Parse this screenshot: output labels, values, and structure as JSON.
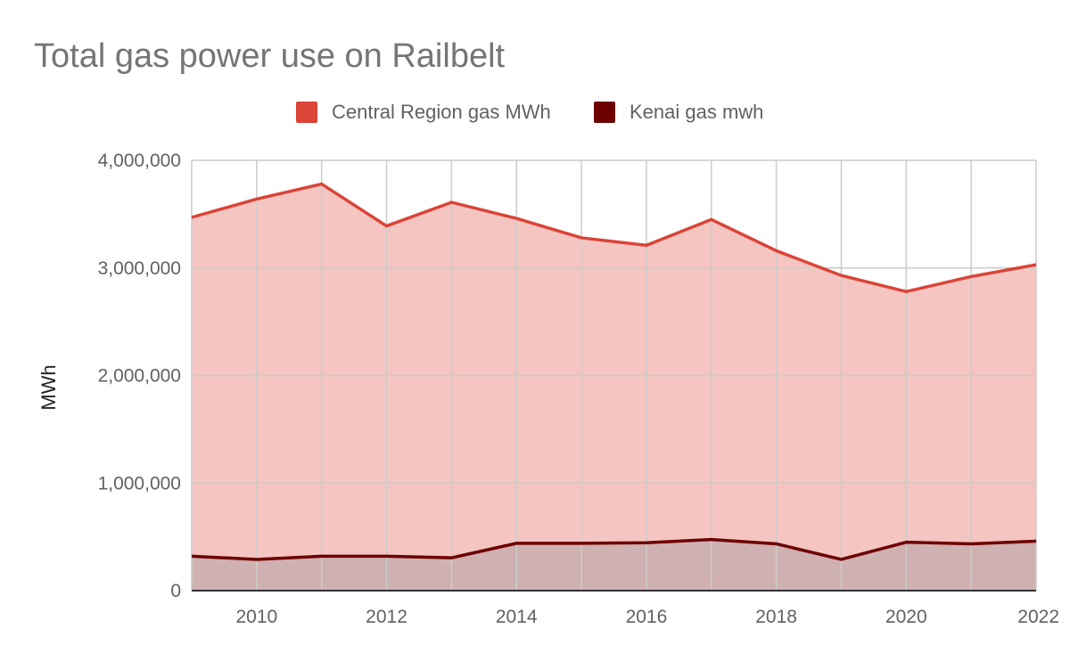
{
  "chart_data": {
    "type": "area",
    "title": "Total gas power use on Railbelt",
    "xlabel": "",
    "ylabel": "MWh",
    "x": [
      2009,
      2010,
      2011,
      2012,
      2013,
      2014,
      2015,
      2016,
      2017,
      2018,
      2019,
      2020,
      2021,
      2022
    ],
    "xlim": [
      2009,
      2022
    ],
    "xticks": [
      "2010",
      "2012",
      "2014",
      "2016",
      "2018",
      "2020",
      "2022"
    ],
    "ylim": [
      0,
      4000000
    ],
    "yticks": [
      "0",
      "1,000,000",
      "2,000,000",
      "3,000,000",
      "4,000,000"
    ],
    "grid": true,
    "legend_position": "top",
    "series": [
      {
        "name": "Central Region gas MWh",
        "line_color": "#db4437",
        "fill_color": "#f4c5c1",
        "values": [
          3470000,
          3640000,
          3780000,
          3390000,
          3610000,
          3460000,
          3280000,
          3210000,
          3450000,
          3160000,
          2930000,
          2780000,
          2920000,
          3030000
        ]
      },
      {
        "name": "Kenai gas mwh",
        "line_color": "#6d0000",
        "fill_color": "#cfb1b1",
        "values": [
          320000,
          290000,
          320000,
          320000,
          305000,
          440000,
          440000,
          445000,
          475000,
          435000,
          290000,
          450000,
          435000,
          460000
        ]
      }
    ]
  }
}
